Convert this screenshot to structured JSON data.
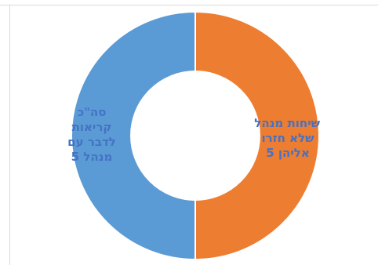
{
  "chart_data": {
    "type": "pie",
    "subtype": "doughnut",
    "title": "",
    "series": [
      {
        "name": "",
        "labels": [
          "שיחות מנהל שלא חזרו אליהן 5",
          "סה\"כ קריאות לדבר עם מנהל 5"
        ],
        "values": [
          5,
          5
        ],
        "colors": [
          "#ed7d31",
          "#5b9bd5"
        ]
      }
    ],
    "legend": "none",
    "slices": [
      {
        "lines": [
          "שיחות מנהל",
          "שלא חזרו",
          "אליהן 5"
        ],
        "color": "#ed7d31"
      },
      {
        "lines": [
          "סה\"כ",
          "קריאות",
          "לדבר עם",
          "מנהל 5"
        ],
        "color": "#5b9bd5"
      }
    ],
    "label_color": "#4472c4"
  }
}
